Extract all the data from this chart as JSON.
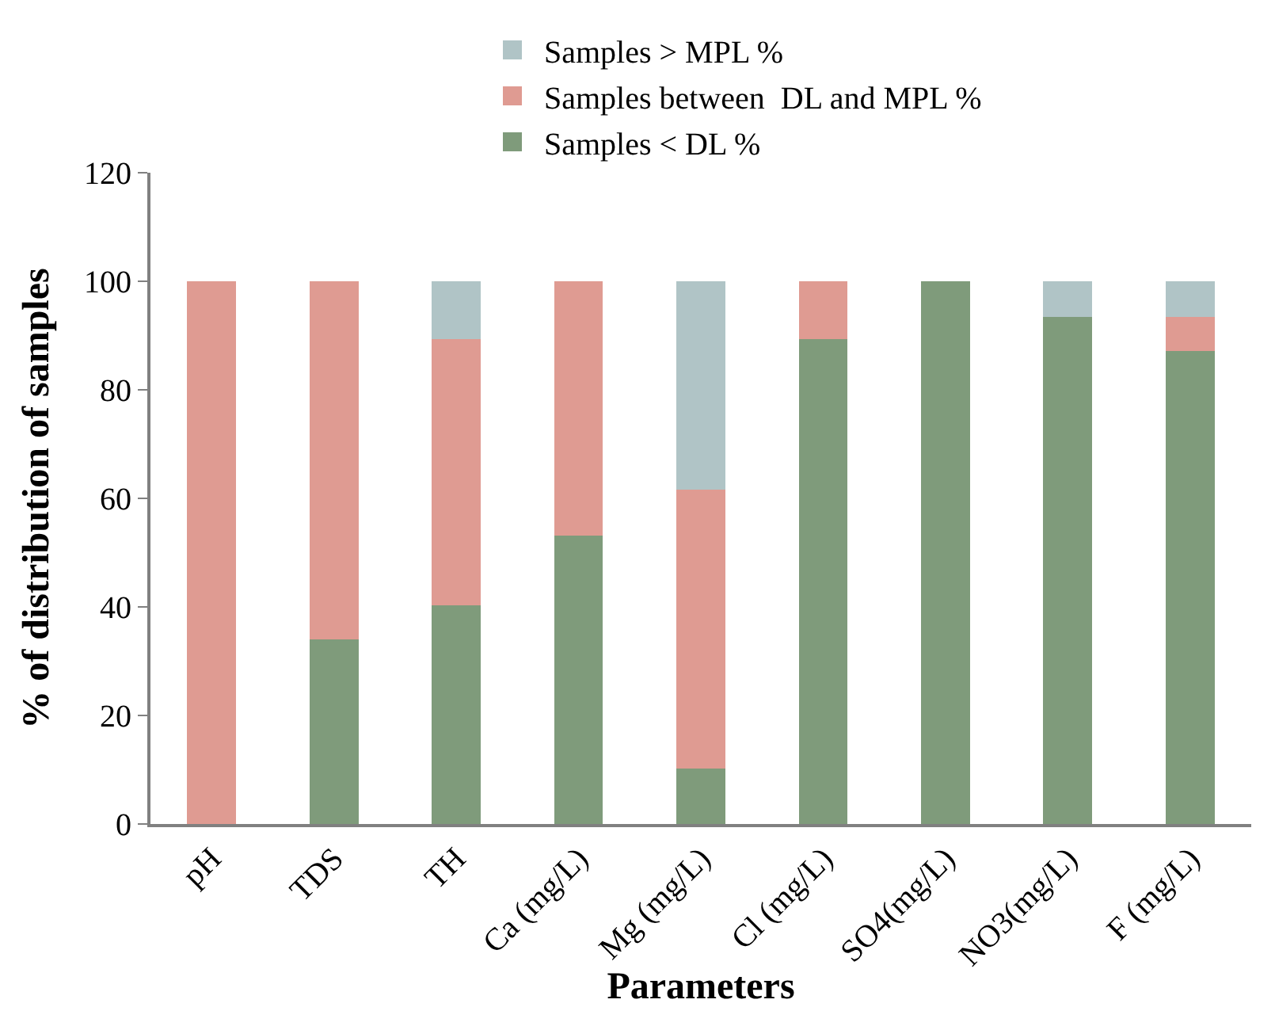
{
  "chart_data": {
    "type": "bar",
    "stacked": true,
    "xlabel": "Parameters",
    "ylabel": "% of distribution of samples",
    "categories": [
      "pH",
      "TDS",
      "TH",
      "Ca (mg/L)",
      "Mg (mg/L)",
      "Cl (mg/L)",
      "SO4(mg/L)",
      "NO3(mg/L)",
      "F (mg/L)"
    ],
    "series": [
      {
        "name": "Samples < DL %",
        "color": "#7f9b7b",
        "values": [
          0,
          34,
          40.3,
          53.1,
          10.2,
          89.4,
          100,
          93.5,
          87.2
        ]
      },
      {
        "name": "Samples between  DL and MPL %",
        "color": "#df9b92",
        "values": [
          100,
          66,
          49.1,
          46.9,
          51.4,
          10.6,
          0,
          0,
          6.3
        ]
      },
      {
        "name": "Samples > MPL %",
        "color": "#b0c4c6",
        "values": [
          0,
          0,
          10.6,
          0,
          38.4,
          0,
          0,
          6.5,
          6.5
        ]
      }
    ],
    "ylim": [
      0,
      120
    ],
    "yticks": [
      0,
      20,
      40,
      60,
      80,
      100,
      120
    ],
    "legend": "top"
  }
}
